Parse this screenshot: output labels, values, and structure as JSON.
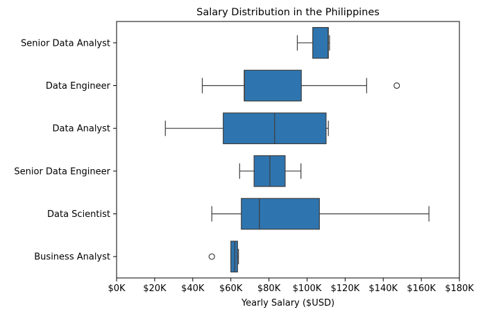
{
  "chart_data": {
    "type": "box",
    "orientation": "horizontal",
    "title": "Salary Distribution in the Philippines",
    "xlabel": "Yearly Salary ($USD)",
    "ylabel": "",
    "xlim": [
      0,
      180000
    ],
    "x_ticks": [
      0,
      20000,
      40000,
      60000,
      80000,
      100000,
      120000,
      140000,
      160000,
      180000
    ],
    "x_tick_labels": [
      "$0K",
      "$20K",
      "$40K",
      "$60K",
      "$80K",
      "$100K",
      "$120K",
      "$140K",
      "$160K",
      "$180K"
    ],
    "grid": false,
    "box_color": "#2e75b0",
    "line_color": "#3d3d3d",
    "categories": [
      "Senior Data Analyst",
      "Data Engineer",
      "Data Analyst",
      "Senior Data Engineer",
      "Data Scientist",
      "Business Analyst"
    ],
    "boxes": [
      {
        "category": "Senior Data Analyst",
        "whisker_low": 94900,
        "q1": 103000,
        "median": 111000,
        "q3": 111200,
        "whisker_high": 111800,
        "outliers": []
      },
      {
        "category": "Data Engineer",
        "whisker_low": 45000,
        "q1": 67000,
        "median": 67200,
        "q3": 97000,
        "whisker_high": 131300,
        "outliers": [
          147100
        ]
      },
      {
        "category": "Data Analyst",
        "whisker_low": 25600,
        "q1": 56000,
        "median": 83000,
        "q3": 110000,
        "whisker_high": 111200,
        "outliers": []
      },
      {
        "category": "Senior Data Engineer",
        "whisker_low": 64600,
        "q1": 72200,
        "median": 80500,
        "q3": 88500,
        "whisker_high": 96800,
        "outliers": []
      },
      {
        "category": "Data Scientist",
        "whisker_low": 50000,
        "q1": 65500,
        "median": 75000,
        "q3": 106500,
        "whisker_high": 164000,
        "outliers": []
      },
      {
        "category": "Business Analyst",
        "whisker_low": 60000,
        "q1": 60000,
        "median": 62000,
        "q3": 63500,
        "whisker_high": 64000,
        "outliers": [
          50000
        ]
      }
    ]
  }
}
